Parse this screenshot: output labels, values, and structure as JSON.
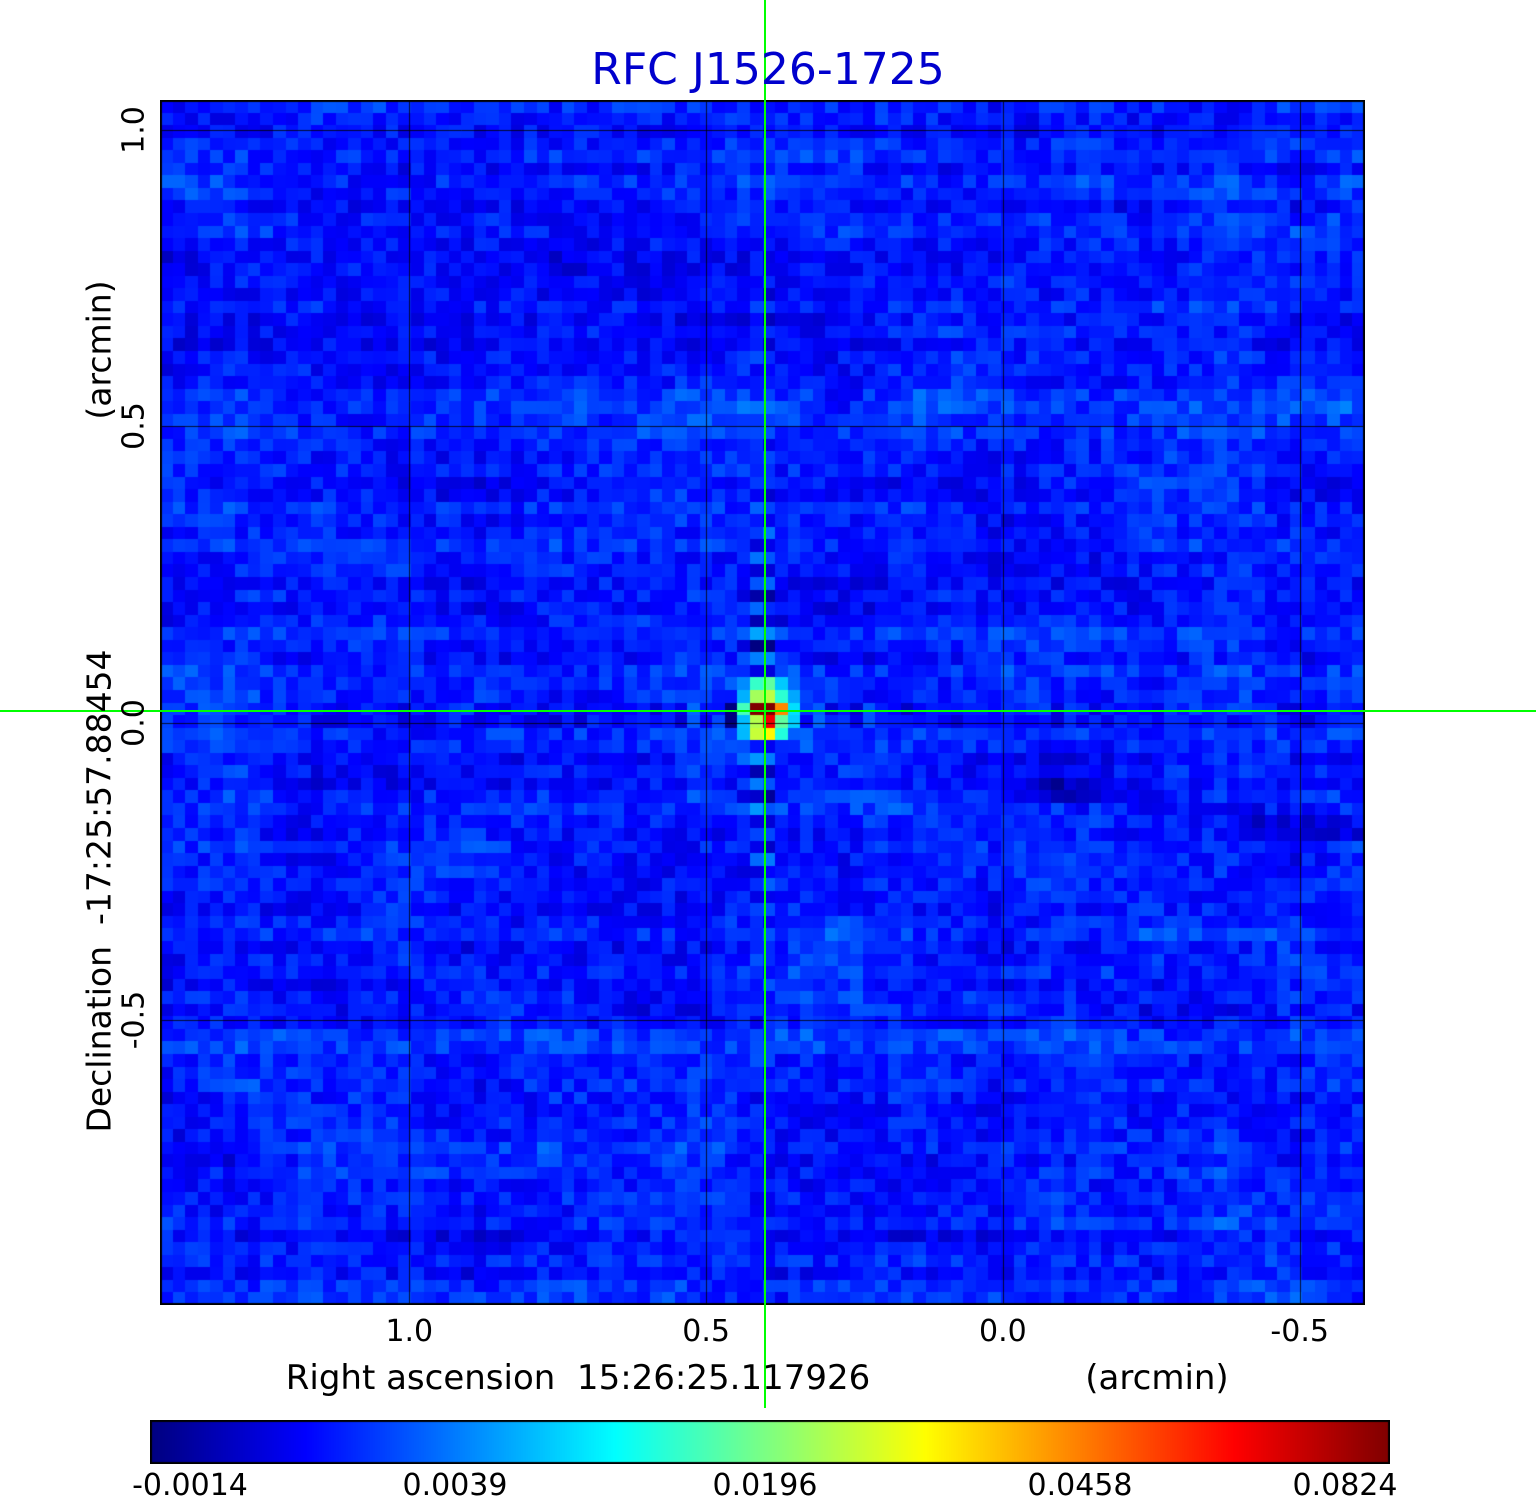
{
  "title": "RFC J1526-1725",
  "colors": {
    "title": "#0000cd",
    "crosshair": "#00ff00",
    "grid": "#000000",
    "background": "#ffffff"
  },
  "y_axis": {
    "unit_label": "(arcmin)",
    "name_label": "Declination  -17:25:57.88454",
    "ticks": [
      "1.0",
      "0.5",
      "0.0",
      "-0.5"
    ]
  },
  "x_axis": {
    "name_label": "Right ascension  15:26:25.117926",
    "unit_label": "(arcmin)",
    "ticks": [
      "1.0",
      "0.5",
      "0.0",
      "-0.5"
    ]
  },
  "colorbar": {
    "colormap": "jet",
    "tick_labels": [
      "-0.0014",
      "0.0039",
      "0.0196",
      "0.0458",
      "0.0824"
    ]
  },
  "chart_data": {
    "type": "heatmap",
    "title": "RFC J1526-1725",
    "xlabel": "Right ascension 15:26:25.117926 (arcmin)",
    "ylabel": "Declination -17:25:57.88454 (arcmin)",
    "colormap": "jet",
    "stretch": "nonlinear (sqrt-like)",
    "value_min": -0.0014,
    "value_max": 0.0824,
    "colorbar_ticks": [
      -0.0014,
      0.0039,
      0.0196,
      0.0458,
      0.0824
    ],
    "x_ticks_arcmin": [
      1.0,
      0.5,
      0.0,
      -0.5
    ],
    "y_ticks_arcmin": [
      1.0,
      0.5,
      0.0,
      -0.5
    ],
    "x_range_arcmin": [
      1.42,
      -0.61
    ],
    "y_range_arcmin": [
      1.05,
      -0.98
    ],
    "grid": true,
    "background": "low-level blue noise, roughly 0.000 to 0.004",
    "source": {
      "name": "RFC J1526-1725",
      "x_arcmin": 0.4,
      "y_arcmin": 0.02,
      "peak_value": 0.0824,
      "marked_by_crosshair": true
    }
  }
}
